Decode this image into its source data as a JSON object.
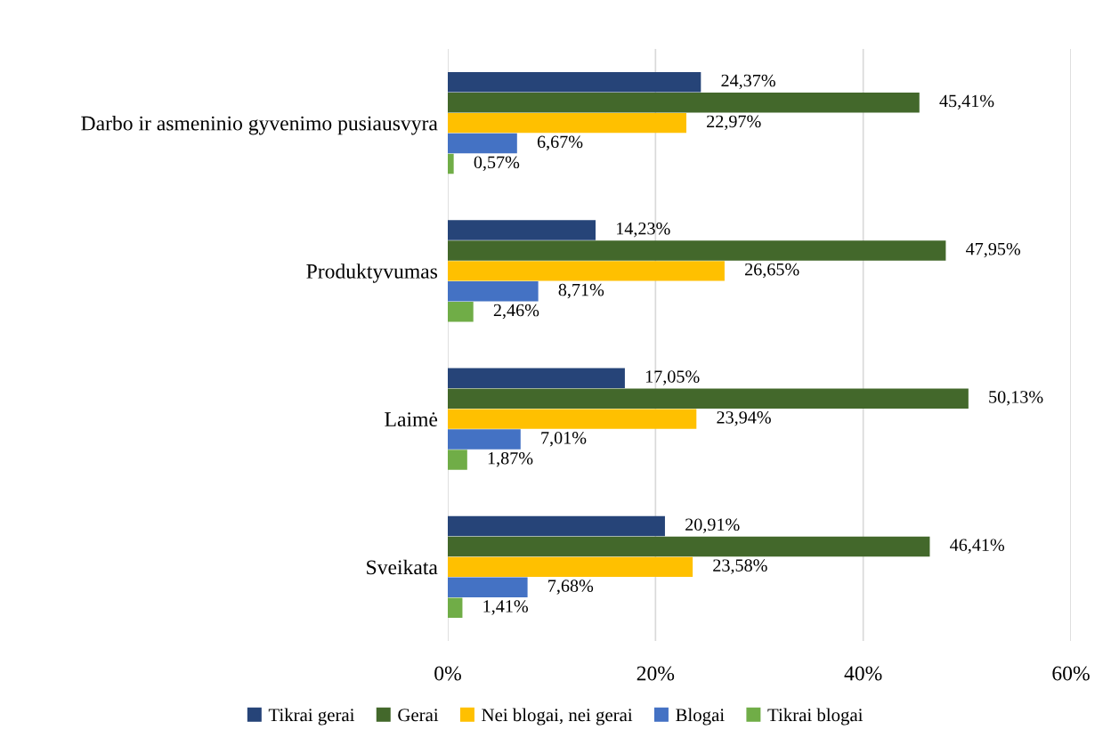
{
  "chart_data": {
    "type": "bar",
    "orientation": "horizontal",
    "categories": [
      "Darbo ir asmeninio gyvenimo pusiausvyra",
      "Produktyvumas",
      "Laimė",
      "Sveikata"
    ],
    "series": [
      {
        "name": "Tikrai gerai",
        "color": "#264478",
        "values": [
          24.37,
          14.23,
          17.05,
          20.91
        ],
        "value_labels": [
          "24,37%",
          "14,23%",
          "17,05%",
          "20,91%"
        ]
      },
      {
        "name": "Gerai",
        "color": "#43682b",
        "values": [
          45.41,
          47.95,
          50.13,
          46.41
        ],
        "value_labels": [
          "45,41%",
          "47,95%",
          "50,13%",
          "46,41%"
        ]
      },
      {
        "name": "Nei blogai, nei gerai",
        "color": "#ffc000",
        "values": [
          22.97,
          26.65,
          23.94,
          23.58
        ],
        "value_labels": [
          "22,97%",
          "26,65%",
          "23,94%",
          "23,58%"
        ]
      },
      {
        "name": "Blogai",
        "color": "#4472c4",
        "values": [
          6.67,
          8.71,
          7.01,
          7.68
        ],
        "value_labels": [
          "6,67%",
          "8,71%",
          "7,01%",
          "7,68%"
        ]
      },
      {
        "name": "Tikrai blogai",
        "color": "#70ad47",
        "values": [
          0.57,
          2.46,
          1.87,
          1.41
        ],
        "value_labels": [
          "0,57%",
          "2,46%",
          "1,87%",
          "1,41%"
        ]
      }
    ],
    "xlim": [
      0,
      60
    ],
    "xticks": [
      {
        "value": 0,
        "label": "0%"
      },
      {
        "value": 20,
        "label": "20%"
      },
      {
        "value": 40,
        "label": "40%"
      },
      {
        "value": 60,
        "label": "60%"
      }
    ],
    "grid": "x",
    "legend": "bottom"
  }
}
